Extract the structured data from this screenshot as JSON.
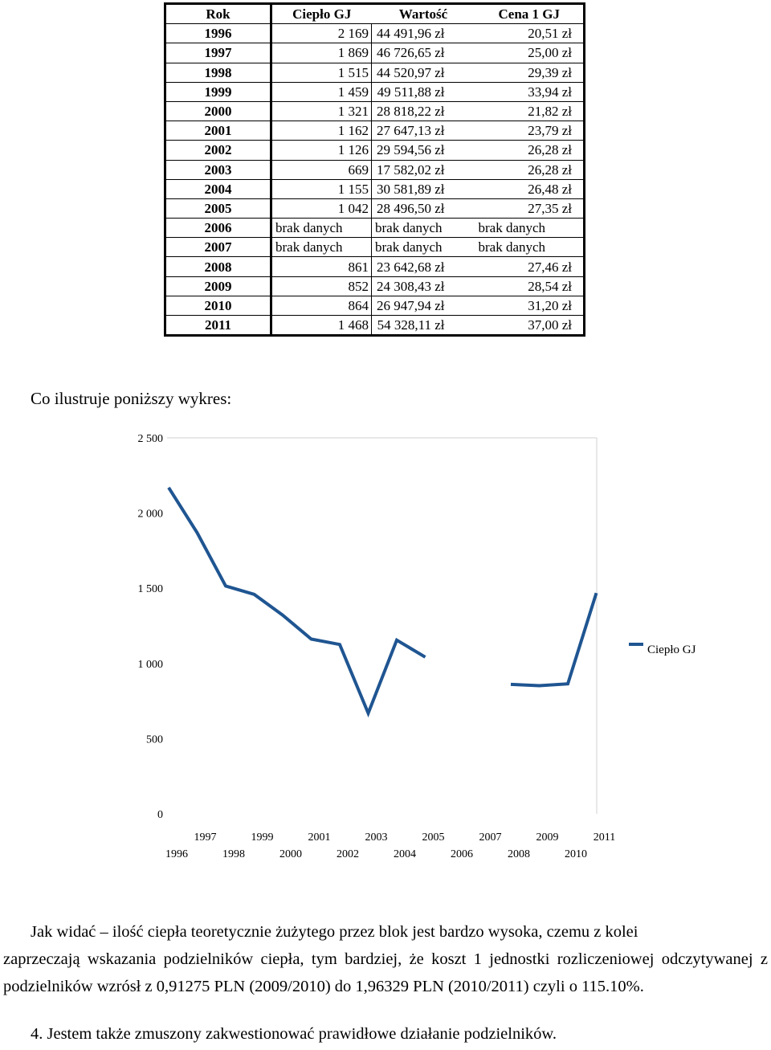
{
  "table": {
    "headers": [
      "Rok",
      "Ciepło GJ",
      "Wartość",
      "Cena 1 GJ"
    ],
    "rows": [
      [
        "1996",
        "2 169",
        "44 491,96 zł",
        "20,51 zł"
      ],
      [
        "1997",
        "1 869",
        "46 726,65 zł",
        "25,00 zł"
      ],
      [
        "1998",
        "1 515",
        "44 520,97 zł",
        "29,39 zł"
      ],
      [
        "1999",
        "1 459",
        "49 511,88 zł",
        "33,94 zł"
      ],
      [
        "2000",
        "1 321",
        "28 818,22 zł",
        "21,82 zł"
      ],
      [
        "2001",
        "1 162",
        "27 647,13 zł",
        "23,79 zł"
      ],
      [
        "2002",
        "1 126",
        "29 594,56 zł",
        "26,28 zł"
      ],
      [
        "2003",
        "669",
        "17 582,02 zł",
        "26,28 zł"
      ],
      [
        "2004",
        "1 155",
        "30 581,89 zł",
        "26,48 zł"
      ],
      [
        "2005",
        "1 042",
        "28 496,50 zł",
        "27,35 zł"
      ],
      [
        "2006",
        "brak danych",
        "brak danych",
        "brak danych"
      ],
      [
        "2007",
        "brak danych",
        "brak danych",
        "brak danych"
      ],
      [
        "2008",
        "861",
        "23 642,68 zł",
        "27,46 zł"
      ],
      [
        "2009",
        "852",
        "24 308,43 zł",
        "28,54 zł"
      ],
      [
        "2010",
        "864",
        "26 947,94 zł",
        "31,20 zł"
      ],
      [
        "2011",
        "1 468",
        "54 328,11 zł",
        "37,00 zł"
      ]
    ]
  },
  "intro_text": "Co ilustruje poniższy wykres:",
  "chart_data": {
    "type": "line",
    "x": [
      "1996",
      "1997",
      "1998",
      "1999",
      "2000",
      "2001",
      "2002",
      "2003",
      "2004",
      "2005",
      "2006",
      "2007",
      "2008",
      "2009",
      "2010",
      "2011"
    ],
    "series": [
      {
        "name": "Ciepło GJ",
        "values": [
          2169,
          1869,
          1515,
          1459,
          1321,
          1162,
          1126,
          669,
          1155,
          1042,
          null,
          null,
          861,
          852,
          864,
          1468
        ]
      }
    ],
    "y_ticks": [
      "0",
      "500",
      "1 000",
      "1 500",
      "2 000",
      "2 500"
    ],
    "ylim": [
      0,
      2500
    ],
    "grid": false,
    "legend": "right",
    "line_color": "#1f5591"
  },
  "paragraph": {
    "line1": "Jak widać – ilość ciepła teoretycznie żużytego przez blok jest bardzo wysoka, czemu z kolei",
    "rest": "zaprzeczają wskazania podzielników ciepła, tym bardziej, że koszt 1 jednostki rozliczeniowej odczytywanej z podzielników wzrósł z 0,91275 PLN (2009/2010) do 1,96329 PLN (2010/2011) czyli o 115.10%."
  },
  "item4": {
    "number": "4.",
    "text": "Jestem także zmuszony zakwestionować prawidłowe działanie podzielników."
  }
}
